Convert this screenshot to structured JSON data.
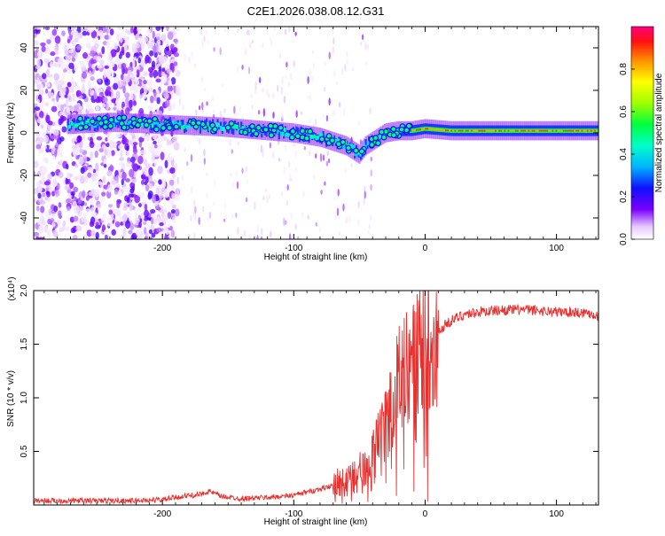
{
  "title": "C2E1.2026.038.08.12.G31",
  "chart_data": [
    {
      "type": "heatmap",
      "xlabel": "Height of straight line (km)",
      "ylabel": "Frequency (Hz)",
      "xlim": [
        -298,
        132
      ],
      "ylim": [
        -50,
        50
      ],
      "xticks": [
        -200,
        -100,
        0,
        100
      ],
      "yticks": [
        -40,
        -20,
        0,
        20,
        40
      ],
      "colorbar": {
        "label": "Normalized spectral amplitude",
        "range": [
          0,
          1
        ],
        "ticks": [
          0.0,
          0.2,
          0.4,
          0.6,
          0.8
        ]
      },
      "ridge": {
        "x": [
          -270,
          -240,
          -200,
          -160,
          -140,
          -120,
          -100,
          -90,
          -80,
          -70,
          -60,
          -55,
          -50,
          -45,
          -40,
          -30,
          -20,
          -10,
          0,
          20,
          60,
          100,
          132
        ],
        "y": [
          4,
          5,
          4,
          3,
          2,
          1,
          0,
          -1,
          -2,
          -4,
          -6,
          -8,
          -10,
          -6,
          -4,
          0,
          1,
          1,
          2,
          1,
          1,
          1,
          1
        ]
      }
    },
    {
      "type": "line",
      "xlabel": "Height of straight line (km)",
      "ylabel": "SNR (10 * v/v)",
      "yscale_label": "(x10⁴)",
      "xlim": [
        -298,
        132
      ],
      "ylim": [
        0,
        2.0
      ],
      "xticks": [
        -200,
        -100,
        0,
        100
      ],
      "yticks": [
        0.5,
        1.0,
        1.5,
        2.0
      ],
      "series": [
        {
          "name": "SNR",
          "color": "#e8302e",
          "x": [
            -298,
            -280,
            -260,
            -240,
            -220,
            -200,
            -185,
            -170,
            -165,
            -155,
            -140,
            -120,
            -100,
            -90,
            -80,
            -70,
            -60,
            -50,
            -45,
            -40,
            -35,
            -30,
            -25,
            -20,
            -15,
            -10,
            -5,
            0,
            5,
            10,
            15,
            20,
            30,
            40,
            60,
            80,
            100,
            115,
            125,
            132
          ],
          "y": [
            0.04,
            0.04,
            0.04,
            0.04,
            0.04,
            0.05,
            0.08,
            0.1,
            0.13,
            0.08,
            0.06,
            0.07,
            0.09,
            0.12,
            0.15,
            0.18,
            0.22,
            0.3,
            0.38,
            0.45,
            0.6,
            0.75,
            0.95,
            1.2,
            1.3,
            1.4,
            1.45,
            1.5,
            1.55,
            1.6,
            1.68,
            1.72,
            1.78,
            1.8,
            1.82,
            1.82,
            1.8,
            1.8,
            1.79,
            1.76
          ]
        }
      ]
    }
  ]
}
